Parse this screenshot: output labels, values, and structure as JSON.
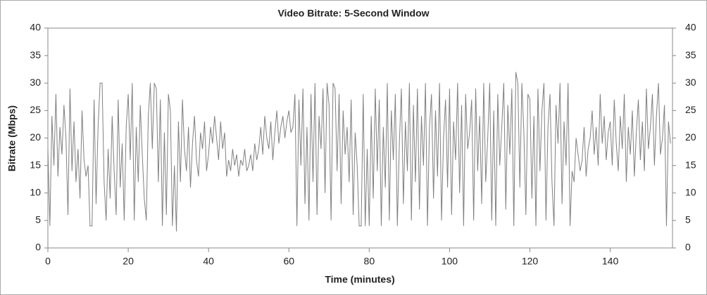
{
  "chart_data": {
    "type": "line",
    "title": "Video Bitrate: 5-Second Window",
    "xlabel": "Time (minutes)",
    "ylabel": "Bitrate (Mbps)",
    "xlim": [
      0,
      155.5
    ],
    "ylim": [
      0,
      40
    ],
    "y2lim": [
      0,
      40
    ],
    "xticks": [
      0,
      20,
      40,
      60,
      80,
      100,
      120,
      140
    ],
    "yticks": [
      0,
      5,
      10,
      15,
      20,
      25,
      30,
      35,
      40
    ],
    "y2ticks": [
      0,
      5,
      10,
      15,
      20,
      25,
      30,
      35,
      40
    ],
    "grid": false,
    "series": [
      {
        "name": "Video Bitrate",
        "color": "#808080",
        "x": [
          0,
          0.5,
          1,
          1.5,
          2,
          2.5,
          3,
          3.5,
          4,
          4.5,
          5,
          5.5,
          6,
          6.5,
          7,
          7.5,
          8,
          8.5,
          9,
          9.5,
          10,
          10.5,
          11,
          11.5,
          12,
          12.5,
          13,
          13.5,
          14,
          14.5,
          15,
          15.5,
          16,
          16.5,
          17,
          17.5,
          18,
          18.5,
          19,
          19.5,
          20,
          20.5,
          21,
          21.5,
          22,
          22.5,
          23,
          23.5,
          24,
          24.5,
          25,
          25.5,
          26,
          26.5,
          27,
          27.5,
          28,
          28.5,
          29,
          29.5,
          30,
          30.5,
          31,
          31.5,
          32,
          32.5,
          33,
          33.5,
          34,
          34.5,
          35,
          35.5,
          36,
          36.5,
          37,
          37.5,
          38,
          38.5,
          39,
          39.5,
          40,
          40.5,
          41,
          41.5,
          42,
          42.5,
          43,
          43.5,
          44,
          44.5,
          45,
          45.5,
          46,
          46.5,
          47,
          47.5,
          48,
          48.5,
          49,
          49.5,
          50,
          50.5,
          51,
          51.5,
          52,
          52.5,
          53,
          53.5,
          54,
          54.5,
          55,
          55.5,
          56,
          56.5,
          57,
          57.5,
          58,
          58.5,
          59,
          59.5,
          60,
          60.5,
          61,
          61.5,
          62,
          62.5,
          63,
          63.5,
          64,
          64.5,
          65,
          65.5,
          66,
          66.5,
          67,
          67.5,
          68,
          68.5,
          69,
          69.5,
          70,
          70.5,
          71,
          71.5,
          72,
          72.5,
          73,
          73.5,
          74,
          74.5,
          75,
          75.5,
          76,
          76.5,
          77,
          77.5,
          78,
          78.5,
          79,
          79.5,
          80,
          80.5,
          81,
          81.5,
          82,
          82.5,
          83,
          83.5,
          84,
          84.5,
          85,
          85.5,
          86,
          86.5,
          87,
          87.5,
          88,
          88.5,
          89,
          89.5,
          90,
          90.5,
          91,
          91.5,
          92,
          92.5,
          93,
          93.5,
          94,
          94.5,
          95,
          95.5,
          96,
          96.5,
          97,
          97.5,
          98,
          98.5,
          99,
          99.5,
          100,
          100.5,
          101,
          101.5,
          102,
          102.5,
          103,
          103.5,
          104,
          104.5,
          105,
          105.5,
          106,
          106.5,
          107,
          107.5,
          108,
          108.5,
          109,
          109.5,
          110,
          110.5,
          111,
          111.5,
          112,
          112.5,
          113,
          113.5,
          114,
          114.5,
          115,
          115.5,
          116,
          116.5,
          117,
          117.5,
          118,
          118.5,
          119,
          119.5,
          120,
          120.5,
          121,
          121.5,
          122,
          122.5,
          123,
          123.5,
          124,
          124.5,
          125,
          125.5,
          126,
          126.5,
          127,
          127.5,
          128,
          128.5,
          129,
          129.5,
          130,
          130.5,
          131,
          131.5,
          132,
          132.5,
          133,
          133.5,
          134,
          134.5,
          135,
          135.5,
          136,
          136.5,
          137,
          137.5,
          138,
          138.5,
          139,
          139.5,
          140,
          140.5,
          141,
          141.5,
          142,
          142.5,
          143,
          143.5,
          144,
          144.5,
          145,
          145.5,
          146,
          146.5,
          147,
          147.5,
          148,
          148.5,
          149,
          149.5,
          150,
          150.5,
          151,
          151.5,
          152,
          152.5,
          153,
          153.5,
          154,
          154.5,
          155
        ],
        "values": [
          18,
          4,
          24,
          15,
          28,
          13,
          22,
          17,
          26,
          20,
          6,
          29,
          14,
          23,
          12,
          18,
          9,
          25,
          16,
          13,
          15,
          4,
          4,
          27,
          8,
          22,
          30,
          30,
          12,
          5,
          18,
          9,
          24,
          14,
          6,
          27,
          11,
          19,
          5,
          22,
          28,
          16,
          30,
          5,
          22,
          12,
          26,
          17,
          9,
          5,
          24,
          30,
          18,
          30,
          29,
          12,
          27,
          4,
          21,
          6,
          28,
          25,
          4,
          15,
          3,
          23,
          12,
          27,
          18,
          14,
          22,
          11,
          19,
          24,
          16,
          13,
          21,
          18,
          23,
          14,
          17,
          22,
          19,
          24,
          20,
          16,
          23,
          18,
          21,
          13,
          16,
          14,
          18,
          15,
          17,
          13,
          16,
          15,
          18,
          14,
          15,
          17,
          14,
          19,
          16,
          18,
          22,
          17,
          24,
          20,
          18,
          23,
          16,
          21,
          25,
          19,
          22,
          24,
          20,
          23,
          25,
          21,
          22,
          28,
          4,
          27,
          15,
          29,
          8,
          22,
          5,
          28,
          12,
          30,
          6,
          24,
          18,
          29,
          10,
          30,
          26,
          5,
          30,
          29,
          14,
          28,
          8,
          25,
          17,
          22,
          12,
          27,
          6,
          21,
          15,
          4,
          4,
          28,
          4,
          18,
          4,
          24,
          9,
          29,
          14,
          27,
          4,
          22,
          11,
          30,
          5,
          25,
          16,
          28,
          4,
          19,
          29,
          8,
          23,
          14,
          30,
          5,
          26,
          12,
          29,
          7,
          24,
          15,
          30,
          4,
          22,
          28,
          9,
          25,
          13,
          30,
          5,
          20,
          27,
          11,
          29,
          6,
          23,
          16,
          30,
          10,
          26,
          4,
          28,
          18,
          21,
          27,
          5,
          29,
          14,
          24,
          8,
          30,
          12,
          20,
          30,
          5,
          25,
          4,
          28,
          15,
          22,
          30,
          7,
          26,
          17,
          29,
          4,
          32,
          30,
          11,
          30,
          21,
          6,
          28,
          27,
          9,
          24,
          4,
          29,
          14,
          25,
          30,
          5,
          22,
          28,
          12,
          4,
          26,
          19,
          30,
          8,
          23,
          15,
          30,
          4,
          14,
          12,
          20,
          17,
          14,
          16,
          22,
          13,
          18,
          20,
          25,
          17,
          22,
          15,
          28,
          19,
          24,
          16,
          21,
          23,
          15,
          27,
          19,
          14,
          24,
          18,
          28,
          12,
          22,
          17,
          25,
          13,
          21,
          27,
          16,
          23,
          14,
          29,
          18,
          22,
          28,
          15,
          24,
          30,
          17,
          20,
          26,
          4,
          23,
          19
        ]
      }
    ]
  }
}
